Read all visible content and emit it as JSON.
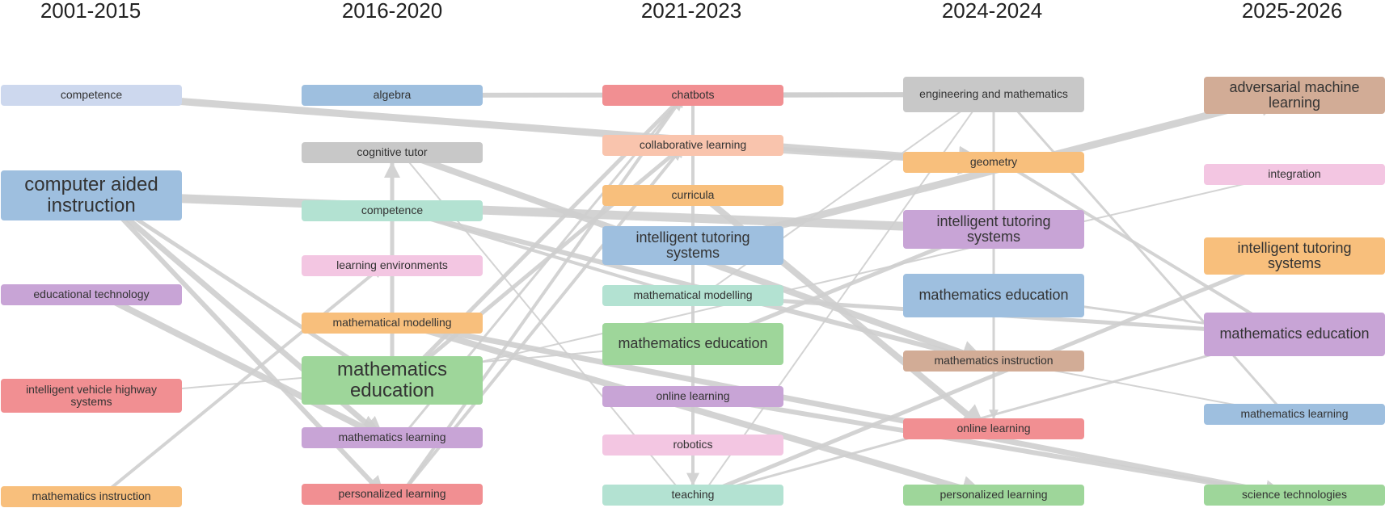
{
  "periods": [
    "2001-2015",
    "2016-2020",
    "2021-2023",
    "2024-2024",
    "2025-2026"
  ],
  "colors": {
    "blue": "#9ebfdf",
    "blue_light": "#cdd8ee",
    "gray": "#c8c8c8",
    "green": "#9ed69a",
    "teal": "#b3e2d2",
    "purple": "#c8a4d6",
    "pink": "#f3c6e2",
    "orange": "#f8bf7c",
    "peach": "#f9c4ad",
    "red": "#f18f92",
    "brown": "#d2ac96",
    "link": "#cfcfcf"
  },
  "columns": [
    {
      "period": "2001-2015",
      "nodes": [
        {
          "id": "c1_competence",
          "label": "competence",
          "color": "blue_light",
          "size": "s"
        },
        {
          "id": "c1_cai",
          "label": "computer aided instruction",
          "color": "blue",
          "size": "l"
        },
        {
          "id": "c1_edtech",
          "label": "educational technology",
          "color": "purple",
          "size": "s"
        },
        {
          "id": "c1_ivhs",
          "label": "intelligent vehicle highway systems",
          "color": "red",
          "size": "s"
        },
        {
          "id": "c1_mathinstr",
          "label": "mathematics instruction",
          "color": "orange",
          "size": "s"
        }
      ]
    },
    {
      "period": "2016-2020",
      "nodes": [
        {
          "id": "c2_algebra",
          "label": "algebra",
          "color": "blue",
          "size": "s"
        },
        {
          "id": "c2_cogtutor",
          "label": "cognitive tutor",
          "color": "gray",
          "size": "s"
        },
        {
          "id": "c2_competence",
          "label": "competence",
          "color": "teal",
          "size": "s"
        },
        {
          "id": "c2_learnenv",
          "label": "learning environments",
          "color": "pink",
          "size": "s"
        },
        {
          "id": "c2_mathmod",
          "label": "mathematical modelling",
          "color": "orange",
          "size": "s"
        },
        {
          "id": "c2_mathedu",
          "label": "mathematics education",
          "color": "green",
          "size": "l"
        },
        {
          "id": "c2_mathlearn",
          "label": "mathematics learning",
          "color": "purple",
          "size": "s"
        },
        {
          "id": "c2_perslearn",
          "label": "personalized learning",
          "color": "red",
          "size": "s"
        }
      ]
    },
    {
      "period": "2021-2023",
      "nodes": [
        {
          "id": "c3_chatbots",
          "label": "chatbots",
          "color": "red",
          "size": "s"
        },
        {
          "id": "c3_collab",
          "label": "collaborative learning",
          "color": "peach",
          "size": "s"
        },
        {
          "id": "c3_curricula",
          "label": "curricula",
          "color": "orange",
          "size": "s"
        },
        {
          "id": "c3_its",
          "label": "intelligent tutoring systems",
          "color": "blue",
          "size": "m"
        },
        {
          "id": "c3_mathmod",
          "label": "mathematical modelling",
          "color": "teal",
          "size": "s"
        },
        {
          "id": "c3_mathedu",
          "label": "mathematics education",
          "color": "green",
          "size": "m"
        },
        {
          "id": "c3_online",
          "label": "online learning",
          "color": "purple",
          "size": "s"
        },
        {
          "id": "c3_robotics",
          "label": "robotics",
          "color": "pink",
          "size": "s"
        },
        {
          "id": "c3_teaching",
          "label": "teaching",
          "color": "teal",
          "size": "s"
        }
      ]
    },
    {
      "period": "2024-2024",
      "nodes": [
        {
          "id": "c4_engmath",
          "label": "engineering and mathematics",
          "color": "gray",
          "size": "s"
        },
        {
          "id": "c4_geometry",
          "label": "geometry",
          "color": "orange",
          "size": "s"
        },
        {
          "id": "c4_its",
          "label": "intelligent tutoring systems",
          "color": "purple",
          "size": "m"
        },
        {
          "id": "c4_mathedu",
          "label": "mathematics education",
          "color": "blue",
          "size": "m"
        },
        {
          "id": "c4_mathinstr",
          "label": "mathematics instruction",
          "color": "brown",
          "size": "s"
        },
        {
          "id": "c4_online",
          "label": "online learning",
          "color": "red",
          "size": "s"
        },
        {
          "id": "c4_perslearn",
          "label": "personalized learning",
          "color": "green",
          "size": "s"
        }
      ]
    },
    {
      "period": "2025-2026",
      "nodes": [
        {
          "id": "c5_adversarial",
          "label": "adversarial machine learning",
          "color": "brown",
          "size": "m"
        },
        {
          "id": "c5_integration",
          "label": "integration",
          "color": "pink",
          "size": "s"
        },
        {
          "id": "c5_its",
          "label": "intelligent tutoring systems",
          "color": "orange",
          "size": "m"
        },
        {
          "id": "c5_mathedu",
          "label": "mathematics education",
          "color": "purple",
          "size": "m"
        },
        {
          "id": "c5_mathlearn",
          "label": "mathematics learning",
          "color": "blue",
          "size": "s"
        },
        {
          "id": "c5_scitech",
          "label": "science technologies",
          "color": "green",
          "size": "s"
        }
      ]
    }
  ],
  "links": [
    {
      "from": "c2_algebra",
      "to": "c4_engmath",
      "w": 6
    },
    {
      "from": "c1_competence",
      "to": "c4_geometry",
      "w": 9
    },
    {
      "from": "c1_cai",
      "to": "c4_its",
      "w": 11
    },
    {
      "from": "c1_cai",
      "to": "c2_mathlearn",
      "w": 7
    },
    {
      "from": "c1_cai",
      "to": "c2_perslearn",
      "w": 6
    },
    {
      "from": "c1_cai",
      "to": "c2_mathedu",
      "w": 5
    },
    {
      "from": "c1_edtech",
      "to": "c2_mathlearn",
      "w": 8
    },
    {
      "from": "c1_mathinstr",
      "to": "c2_learnenv",
      "w": 4
    },
    {
      "from": "c1_ivhs",
      "to": "c3_mathedu",
      "w": 2
    },
    {
      "from": "c2_mathedu",
      "to": "c2_cogtutor",
      "w": 5
    },
    {
      "from": "c2_mathedu",
      "to": "c3_chatbots",
      "w": 5
    },
    {
      "from": "c2_mathedu",
      "to": "c3_collab",
      "w": 5
    },
    {
      "from": "c2_perslearn",
      "to": "c3_chatbots",
      "w": 4
    },
    {
      "from": "c2_perslearn",
      "to": "c3_collab",
      "w": 4
    },
    {
      "from": "c2_mathlearn",
      "to": "c3_chatbots",
      "w": 3
    },
    {
      "from": "c2_cogtutor",
      "to": "c4_mathinstr",
      "w": 8
    },
    {
      "from": "c2_cogtutor",
      "to": "c3_teaching",
      "w": 2
    },
    {
      "from": "c2_competence",
      "to": "c3_mathmod",
      "w": 4
    },
    {
      "from": "c2_competence",
      "to": "c4_mathinstr",
      "w": 6
    },
    {
      "from": "c2_mathmod",
      "to": "c4_perslearn",
      "w": 8
    },
    {
      "from": "c2_mathmod",
      "to": "c5_scitech",
      "w": 7
    },
    {
      "from": "c3_chatbots",
      "to": "c3_teaching",
      "w": 4
    },
    {
      "from": "c3_collab",
      "to": "c4_geometry",
      "w": 8
    },
    {
      "from": "c3_chatbots",
      "to": "c4_engmath",
      "w": 6
    },
    {
      "from": "c3_curricula",
      "to": "c4_online",
      "w": 8
    },
    {
      "from": "c3_its",
      "to": "c5_adversarial",
      "w": 9
    },
    {
      "from": "c3_mathmod",
      "to": "c5_mathedu",
      "w": 5
    },
    {
      "from": "c3_mathmod",
      "to": "c4_engmath",
      "w": 2
    },
    {
      "from": "c3_mathedu",
      "to": "c4_its",
      "w": 5
    },
    {
      "from": "c3_online",
      "to": "c5_scitech",
      "w": 6
    },
    {
      "from": "c3_teaching",
      "to": "c5_its",
      "w": 5
    },
    {
      "from": "c3_teaching",
      "to": "c5_mathedu",
      "w": 3
    },
    {
      "from": "c3_teaching",
      "to": "c4_engmath",
      "w": 2
    },
    {
      "from": "c4_engmath",
      "to": "c5_mathlearn",
      "w": 3
    },
    {
      "from": "c4_engmath",
      "to": "c4_online",
      "w": 3
    },
    {
      "from": "c4_geometry",
      "to": "c5_mathedu",
      "w": 4
    },
    {
      "from": "c4_mathinstr",
      "to": "c5_mathlearn",
      "w": 2
    },
    {
      "from": "c2_mathedu",
      "to": "c5_integration",
      "w": 2
    },
    {
      "from": "c4_mathedu",
      "to": "c5_mathedu",
      "w": 3
    }
  ]
}
